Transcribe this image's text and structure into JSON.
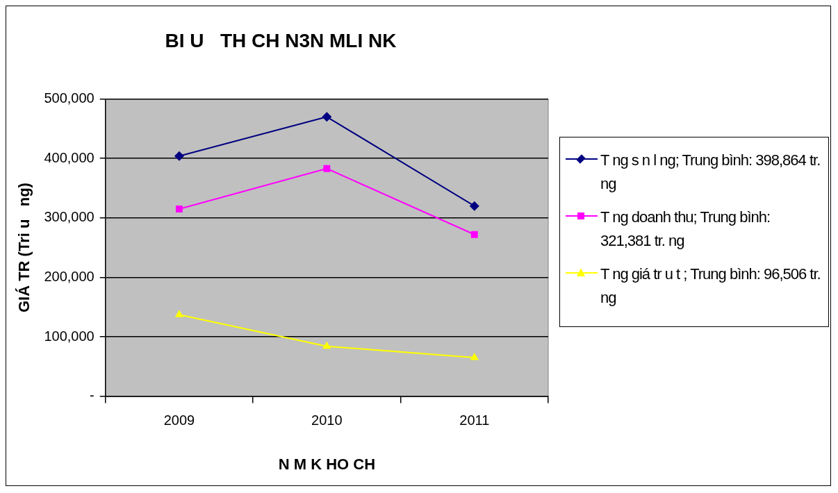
{
  "chart_data": {
    "type": "line",
    "title": "BI U   TH CH N3N MLI NK",
    "xlabel": "N M K HO CH",
    "ylabel": "GIÁ TR (Tri u   ng)",
    "categories": [
      "2009",
      "2010",
      "2011"
    ],
    "series": [
      {
        "name": "T ng s n l   ng; Trung bình: 398,864 tr.   ng",
        "color": "#000080",
        "marker": "diamond",
        "values": [
          404000,
          470000,
          320000
        ]
      },
      {
        "name": "T ng doanh thu; Trung bình: 321,381 tr.   ng",
        "color": "#ff00ff",
        "marker": "square",
        "values": [
          315000,
          383000,
          272000
        ]
      },
      {
        "name": "T ng giá tr   u t  ; Trung bình: 96,506 tr.   ng",
        "color": "#ffff00",
        "marker": "triangle",
        "values": [
          137000,
          84000,
          65000
        ]
      }
    ],
    "ylim": [
      0,
      500000
    ],
    "yticks": [
      {
        "value": 0,
        "label": "-"
      },
      {
        "value": 100000,
        "label": "100,000"
      },
      {
        "value": 200000,
        "label": "200,000"
      },
      {
        "value": 300000,
        "label": "300,000"
      },
      {
        "value": 400000,
        "label": "400,000"
      },
      {
        "value": 500000,
        "label": "500,000"
      }
    ],
    "grid": "y",
    "legend": "right"
  }
}
